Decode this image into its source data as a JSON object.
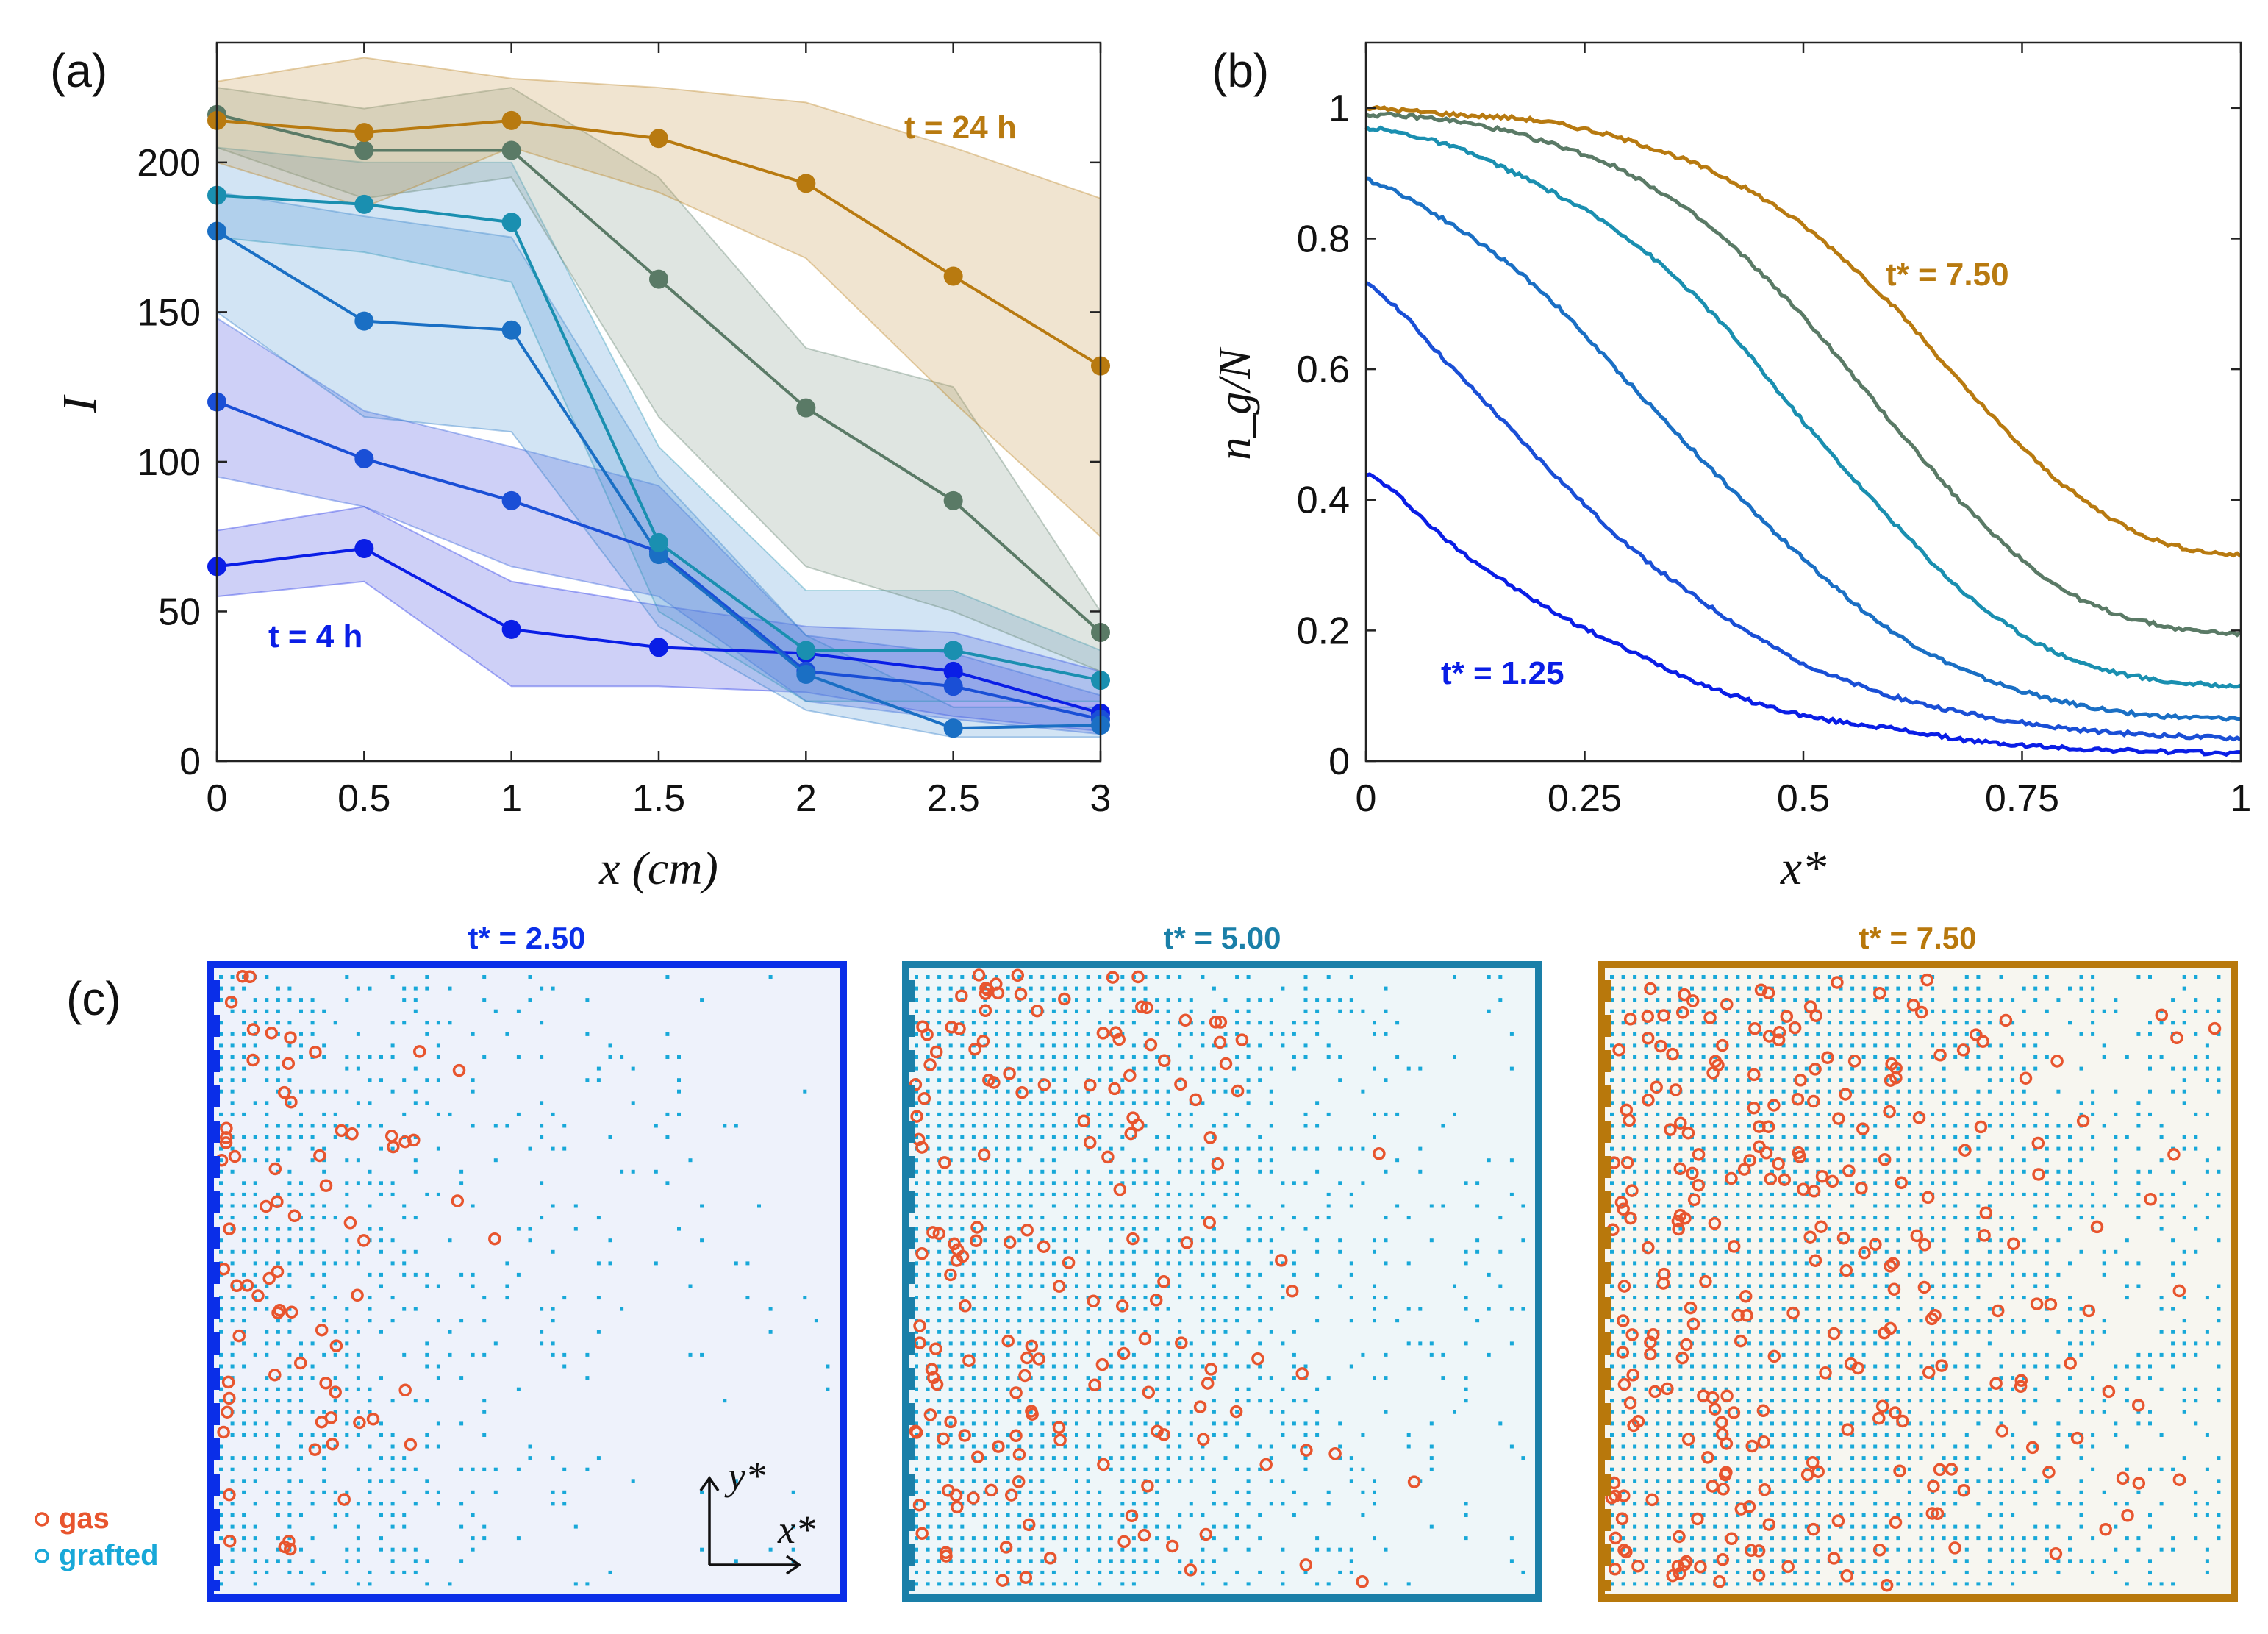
{
  "panel_labels": {
    "a": "(a)",
    "b": "(b)",
    "c": "(c)"
  },
  "colors": {
    "series": [
      "#0a1ee6",
      "#1a4fd6",
      "#1a6fc4",
      "#1a8fb0",
      "#5a7a66",
      "#b87a10"
    ],
    "gas": "#e8552e",
    "grafted": "#18a8d8"
  },
  "chart_data": [
    {
      "type": "line",
      "panel": "a",
      "xlabel": "x (cm)",
      "ylabel": "I",
      "xlim": [
        0,
        3
      ],
      "ylim": [
        0,
        240
      ],
      "xticks": [
        0,
        0.5,
        1,
        1.5,
        2,
        2.5,
        3
      ],
      "xtick_labels": [
        "0",
        "0.5",
        "1",
        "1.5",
        "2",
        "2.5",
        "3"
      ],
      "yticks": [
        0,
        50,
        100,
        150,
        200
      ],
      "ytick_labels": [
        "0",
        "50",
        "100",
        "150",
        "200"
      ],
      "x": [
        0,
        0.5,
        1,
        1.5,
        2,
        2.5,
        3
      ],
      "annotations": [
        {
          "text": "t = 24 h",
          "series": 5
        },
        {
          "text": "t = 4 h",
          "series": 0
        }
      ],
      "series": [
        {
          "name": "t = 4 h",
          "values": [
            65,
            71,
            44,
            38,
            36,
            30,
            16
          ],
          "lower": [
            55,
            60,
            25,
            25,
            23,
            15,
            10
          ],
          "upper": [
            77,
            85,
            60,
            52,
            45,
            43,
            30
          ]
        },
        {
          "name": "series 2",
          "values": [
            120,
            101,
            87,
            70,
            30,
            25,
            14
          ],
          "lower": [
            95,
            85,
            65,
            55,
            20,
            14,
            9
          ],
          "upper": [
            148,
            117,
            105,
            92,
            42,
            36,
            22
          ]
        },
        {
          "name": "series 3",
          "values": [
            177,
            147,
            144,
            69,
            29,
            11,
            12
          ],
          "lower": [
            150,
            115,
            110,
            45,
            17,
            8,
            8
          ],
          "upper": [
            190,
            182,
            175,
            95,
            42,
            18,
            18
          ]
        },
        {
          "name": "series 4",
          "values": [
            189,
            186,
            180,
            73,
            37,
            37,
            27
          ],
          "lower": [
            175,
            170,
            160,
            50,
            20,
            20,
            20
          ],
          "upper": [
            205,
            200,
            200,
            105,
            57,
            57,
            37
          ]
        },
        {
          "name": "series 5",
          "values": [
            216,
            204,
            204,
            161,
            118,
            87,
            43
          ],
          "lower": [
            205,
            188,
            195,
            115,
            65,
            50,
            30
          ],
          "upper": [
            225,
            218,
            225,
            195,
            138,
            125,
            50
          ]
        },
        {
          "name": "t = 24 h",
          "values": [
            214,
            210,
            214,
            208,
            193,
            162,
            132
          ],
          "lower": [
            200,
            185,
            205,
            190,
            168,
            120,
            75
          ],
          "upper": [
            227,
            235,
            228,
            225,
            220,
            205,
            188
          ]
        }
      ]
    },
    {
      "type": "line",
      "panel": "b",
      "xlabel": "x*",
      "ylabel": "n_g/N",
      "xlim": [
        0,
        1
      ],
      "ylim": [
        0,
        1.1
      ],
      "xticks": [
        0,
        0.25,
        0.5,
        0.75,
        1
      ],
      "xtick_labels": [
        "0",
        "0.25",
        "0.5",
        "0.75",
        "1"
      ],
      "yticks": [
        0,
        0.2,
        0.4,
        0.6,
        0.8,
        1
      ],
      "ytick_labels": [
        "0",
        "0.2",
        "0.4",
        "0.6",
        "0.8",
        "1"
      ],
      "annotations": [
        {
          "text": "t* = 7.50",
          "series": 5
        },
        {
          "text": "t* = 1.25",
          "series": 0
        }
      ],
      "series": [
        {
          "name": "t* = 1.25",
          "x": [
            0,
            0.1,
            0.2,
            0.3,
            0.4,
            0.5,
            0.6,
            0.7,
            0.8,
            0.9,
            1
          ],
          "values": [
            0.44,
            0.33,
            0.24,
            0.17,
            0.11,
            0.07,
            0.05,
            0.03,
            0.02,
            0.015,
            0.012
          ]
        },
        {
          "name": "series 2",
          "x": [
            0,
            0.1,
            0.2,
            0.3,
            0.4,
            0.5,
            0.6,
            0.7,
            0.8,
            0.9,
            1
          ],
          "values": [
            0.73,
            0.6,
            0.46,
            0.33,
            0.23,
            0.15,
            0.1,
            0.07,
            0.05,
            0.04,
            0.035
          ]
        },
        {
          "name": "series 3",
          "x": [
            0,
            0.1,
            0.2,
            0.3,
            0.4,
            0.5,
            0.6,
            0.7,
            0.8,
            0.9,
            1
          ],
          "values": [
            0.89,
            0.82,
            0.72,
            0.58,
            0.44,
            0.31,
            0.2,
            0.13,
            0.09,
            0.07,
            0.065
          ]
        },
        {
          "name": "series 4",
          "x": [
            0,
            0.1,
            0.2,
            0.3,
            0.4,
            0.5,
            0.6,
            0.7,
            0.8,
            0.9,
            1
          ],
          "values": [
            0.97,
            0.94,
            0.88,
            0.8,
            0.68,
            0.52,
            0.37,
            0.24,
            0.16,
            0.125,
            0.115
          ]
        },
        {
          "name": "series 5",
          "x": [
            0,
            0.1,
            0.2,
            0.3,
            0.4,
            0.5,
            0.6,
            0.7,
            0.8,
            0.9,
            1
          ],
          "values": [
            0.99,
            0.98,
            0.95,
            0.9,
            0.81,
            0.68,
            0.52,
            0.37,
            0.26,
            0.21,
            0.195
          ]
        },
        {
          "name": "t* = 7.50",
          "x": [
            0,
            0.1,
            0.2,
            0.3,
            0.4,
            0.5,
            0.6,
            0.7,
            0.8,
            0.9,
            1
          ],
          "values": [
            1.0,
            0.99,
            0.98,
            0.95,
            0.9,
            0.82,
            0.7,
            0.55,
            0.42,
            0.34,
            0.315
          ]
        }
      ]
    },
    {
      "type": "scatter",
      "panel": "c",
      "subplots": [
        {
          "title": "t* = 2.50",
          "series_index": 1,
          "grafted_profile": [
            0.73,
            0.6,
            0.46,
            0.33,
            0.23,
            0.15,
            0.1,
            0.07,
            0.05,
            0.04,
            0.035
          ],
          "gas_count": 70
        },
        {
          "title": "t* = 5.00",
          "series_index": 3,
          "grafted_profile": [
            0.97,
            0.94,
            0.88,
            0.8,
            0.68,
            0.52,
            0.37,
            0.24,
            0.16,
            0.125,
            0.115
          ],
          "gas_count": 160
        },
        {
          "title": "t* = 7.50",
          "series_index": 5,
          "grafted_profile": [
            1.0,
            0.99,
            0.98,
            0.95,
            0.9,
            0.82,
            0.7,
            0.55,
            0.42,
            0.34,
            0.315
          ],
          "gas_count": 260
        }
      ],
      "legend": [
        {
          "label": "gas",
          "color": "#e8552e"
        },
        {
          "label": "grafted",
          "color": "#18a8d8"
        }
      ],
      "axes_labels": {
        "x": "x*",
        "y": "y*"
      }
    }
  ]
}
